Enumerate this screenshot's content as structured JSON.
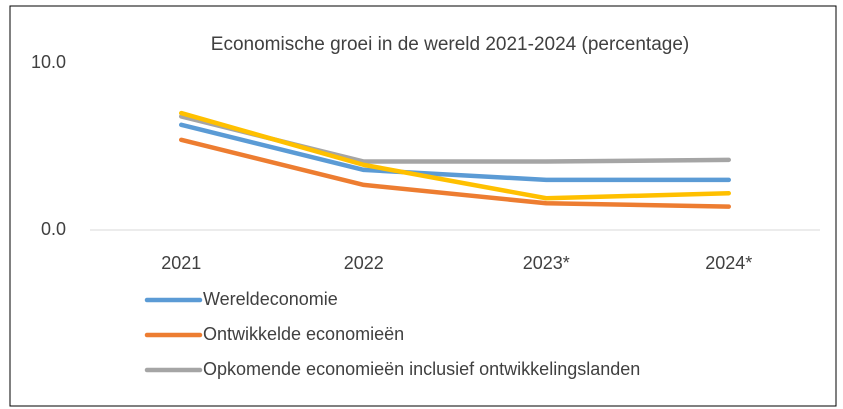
{
  "chart_data": {
    "type": "line",
    "title": "Economische groei in de wereld 2021-2024 (percentage)",
    "categories": [
      "2021",
      "2022",
      "2023*",
      "2024*"
    ],
    "series": [
      {
        "name": "Wereldeconomie",
        "color": "#5b9bd5",
        "values": [
          6.3,
          3.6,
          3.0,
          3.0
        ]
      },
      {
        "name": "Ontwikkelde economieën",
        "color": "#ed7d31",
        "values": [
          5.4,
          2.7,
          1.6,
          1.4
        ]
      },
      {
        "name": "Opkomende economieën inclusief ontwikkelingslanden",
        "color": "#a5a5a5",
        "values": [
          6.8,
          4.1,
          4.1,
          4.2
        ]
      },
      {
        "color": "#ffc000",
        "values": [
          7.0,
          3.9,
          1.9,
          2.2
        ]
      }
    ],
    "ylim": [
      0,
      10
    ],
    "yticks": [
      {
        "value": 0,
        "label": "0.0"
      },
      {
        "value": 10,
        "label": "10.0"
      }
    ]
  }
}
